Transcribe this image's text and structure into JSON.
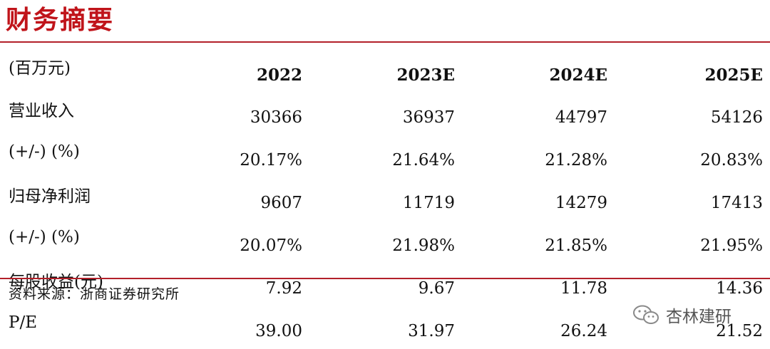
{
  "page": {
    "title": "财务摘要",
    "source": "资料来源：浙商证券研究所",
    "watermark": "杏林建研"
  },
  "table": {
    "header": [
      "(百万元)",
      "2022",
      "2023E",
      "2024E",
      "2025E"
    ],
    "rows": [
      {
        "label": "营业收入",
        "values": [
          "30366",
          "36937",
          "44797",
          "54126"
        ]
      },
      {
        "label": "(+/-) (%)",
        "values": [
          "20.17%",
          "21.64%",
          "21.28%",
          "20.83%"
        ]
      },
      {
        "label": "归母净利润",
        "values": [
          "9607",
          "11719",
          "14279",
          "17413"
        ]
      },
      {
        "label": "(+/-) (%)",
        "values": [
          "20.07%",
          "21.98%",
          "21.85%",
          "21.95%"
        ]
      },
      {
        "label": "每股收益(元)",
        "values": [
          "7.92",
          "9.67",
          "11.78",
          "14.36"
        ]
      },
      {
        "label": "P/E",
        "values": [
          "39.00",
          "31.97",
          "26.24",
          "21.52"
        ]
      }
    ]
  },
  "colors": {
    "title": "#c0141a",
    "rule": "#b3202a"
  },
  "icons": {
    "watermark": "wechat-icon"
  }
}
